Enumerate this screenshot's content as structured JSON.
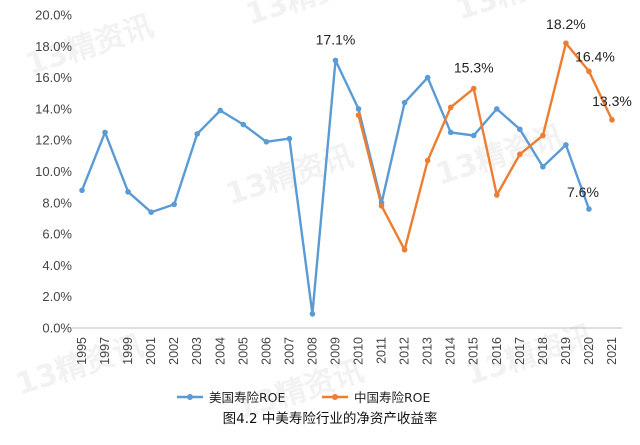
{
  "chart_data": {
    "type": "line",
    "title": "",
    "caption": "图4.2 中美寿险行业的净资产收益率",
    "xlabel": "",
    "ylabel": "",
    "ylim": [
      0,
      20
    ],
    "y_ticks": [
      "0.0%",
      "2.0%",
      "4.0%",
      "6.0%",
      "8.0%",
      "10.0%",
      "12.0%",
      "14.0%",
      "16.0%",
      "18.0%",
      "20.0%"
    ],
    "categories": [
      "1995",
      "1997",
      "1999",
      "2001",
      "2002",
      "2003",
      "2004",
      "2005",
      "2006",
      "2007",
      "2008",
      "2009",
      "2010",
      "2011",
      "2012",
      "2013",
      "2014",
      "2015",
      "2016",
      "2017",
      "2018",
      "2019",
      "2020",
      "2021"
    ],
    "grid": false,
    "legend_position": "bottom",
    "series": [
      {
        "name": "美国寿险ROE",
        "color": "#5B9BD5",
        "values": [
          8.8,
          12.5,
          8.7,
          7.4,
          7.9,
          12.4,
          13.9,
          13.0,
          11.9,
          12.1,
          0.9,
          17.1,
          14.0,
          8.0,
          14.4,
          16.0,
          12.5,
          12.3,
          14.0,
          12.7,
          10.3,
          11.7,
          7.6,
          null
        ]
      },
      {
        "name": "中国寿险ROE",
        "color": "#ED7D31",
        "values": [
          null,
          null,
          null,
          null,
          null,
          null,
          null,
          null,
          null,
          null,
          null,
          null,
          13.6,
          7.8,
          5.0,
          10.7,
          14.1,
          15.3,
          8.5,
          11.1,
          12.3,
          18.2,
          16.4,
          13.3
        ]
      }
    ],
    "annotations": [
      {
        "text": "17.1%",
        "category": "2009",
        "value": 17.1
      },
      {
        "text": "15.3%",
        "category": "2015",
        "value": 15.3
      },
      {
        "text": "18.2%",
        "category": "2019",
        "value": 18.2
      },
      {
        "text": "16.4%",
        "category": "2020",
        "value": 16.4
      },
      {
        "text": "13.3%",
        "category": "2021",
        "value": 13.3
      },
      {
        "text": "7.6%",
        "category": "2020",
        "value": 7.6
      }
    ]
  },
  "watermark": "13精资讯"
}
